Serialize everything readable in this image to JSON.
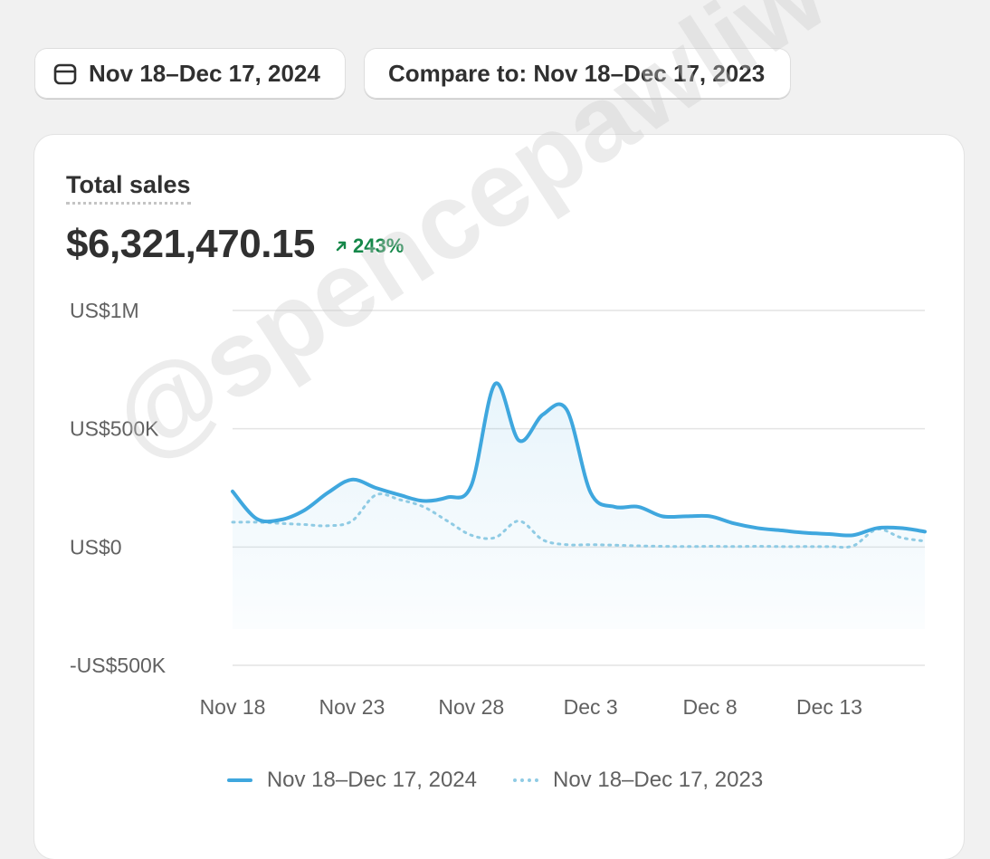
{
  "toolbar": {
    "date_range_label": "Nov 18–Dec 17, 2024",
    "compare_label": "Compare to: Nov 18–Dec 17, 2023",
    "date_icon": "calendar-icon"
  },
  "metric": {
    "title": "Total sales",
    "value": "$6,321,470.15",
    "change": "243%",
    "change_direction": "up",
    "change_color": "#16884a"
  },
  "watermark": "@spencepawliw",
  "chart_data": {
    "type": "line",
    "title": "",
    "xlabel": "",
    "ylabel": "",
    "ylim": [
      -500000,
      1000000
    ],
    "y_ticks": [
      {
        "value": 1000000,
        "label": "US$1M"
      },
      {
        "value": 500000,
        "label": "US$500K"
      },
      {
        "value": 0,
        "label": "US$0"
      },
      {
        "value": -500000,
        "label": "-US$500K"
      }
    ],
    "x_ticks": [
      {
        "index": 0,
        "label": "Nov 18"
      },
      {
        "index": 5,
        "label": "Nov 23"
      },
      {
        "index": 10,
        "label": "Nov 28"
      },
      {
        "index": 15,
        "label": "Dec 3"
      },
      {
        "index": 20,
        "label": "Dec 8"
      },
      {
        "index": 25,
        "label": "Dec 13"
      }
    ],
    "x_count": 30,
    "grid": true,
    "legend_position": "bottom",
    "series": [
      {
        "name": "Nov 18–Dec 17, 2024",
        "style": "solid",
        "color": "#3fa7de",
        "values": [
          235000,
          120000,
          115000,
          155000,
          230000,
          285000,
          250000,
          220000,
          195000,
          210000,
          260000,
          690000,
          450000,
          560000,
          580000,
          230000,
          170000,
          170000,
          130000,
          130000,
          130000,
          100000,
          80000,
          70000,
          60000,
          55000,
          50000,
          80000,
          80000,
          65000
        ]
      },
      {
        "name": "Nov 18–Dec 17, 2023",
        "style": "dotted",
        "color": "#8fcbe4",
        "values": [
          105000,
          105000,
          100000,
          95000,
          90000,
          110000,
          220000,
          200000,
          170000,
          110000,
          50000,
          40000,
          110000,
          30000,
          10000,
          10000,
          8000,
          5000,
          3000,
          2000,
          3000,
          2000,
          3000,
          2000,
          2000,
          2000,
          5000,
          75000,
          40000,
          25000
        ]
      }
    ]
  }
}
